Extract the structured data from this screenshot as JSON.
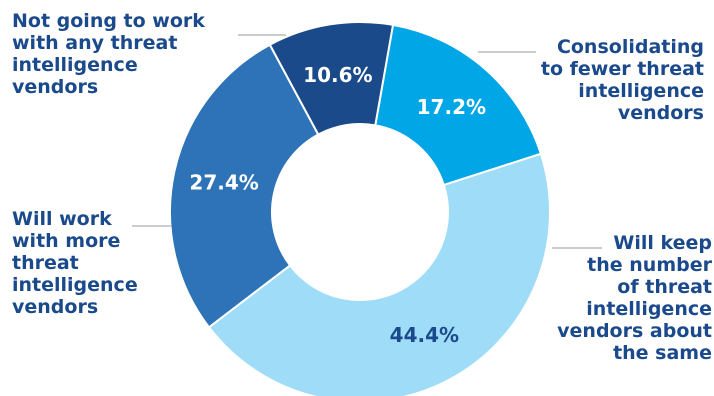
{
  "chart_data": {
    "type": "pie",
    "title": "",
    "start_angle_deg": 10,
    "slices": [
      {
        "label": "Consolidating\nto fewer threat\nintelligence\nvendors",
        "value": 17.2,
        "value_label": "17.2%",
        "color": "#00a6e6"
      },
      {
        "label": "Will keep\nthe number\nof threat\nintelligence\nvendors about\nthe same",
        "value": 44.4,
        "value_label": "44.4%",
        "color": "#9fdcf7"
      },
      {
        "label": "Will work\nwith more\nthreat\nintelligence\nvendors",
        "value": 27.4,
        "value_label": "27.4%",
        "color": "#2e73b8"
      },
      {
        "label": "Not going to work\nwith any threat\nintelligence\nvendors",
        "value": 10.6,
        "value_label": "10.6%",
        "color": "#1a4a8a"
      }
    ],
    "label_color": "#1b4a8c",
    "leader_line_color": "#999999"
  }
}
